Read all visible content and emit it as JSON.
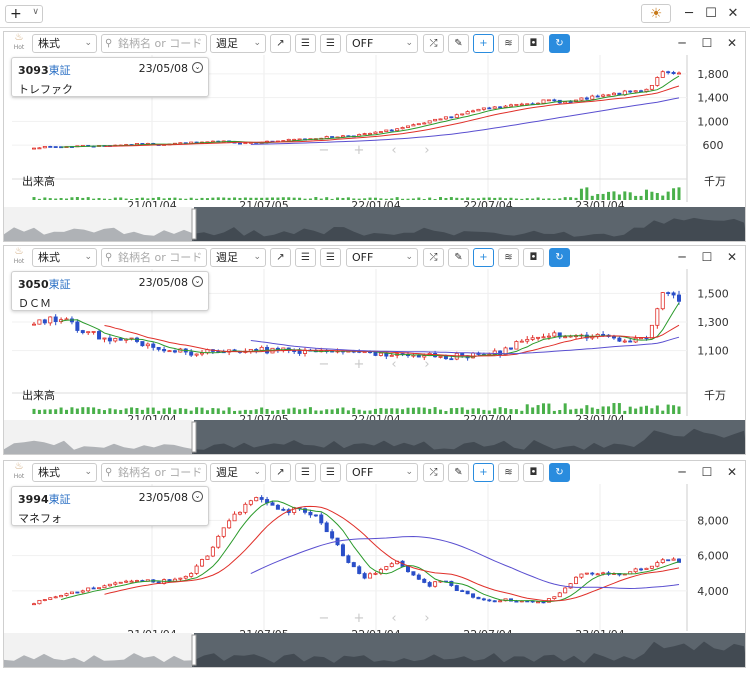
{
  "app": {
    "add_label": "+",
    "add_chev": "∨",
    "theme_icon": "☀",
    "minimize": "─",
    "maximize": "☐",
    "close": "✕"
  },
  "toolbar": {
    "hot_label": "Hot",
    "type": "株式",
    "search_placeholder": "銘柄名 or コード",
    "period": "週足",
    "overlay": "OFF",
    "pwin_min": "─",
    "pwin_max": "☐",
    "pwin_close": "✕"
  },
  "axis_dates": [
    "21/01/04",
    "21/07/05",
    "22/01/04",
    "22/07/04",
    "23/01/04"
  ],
  "panels": [
    {
      "code": "3093",
      "market": "東証",
      "date": "23/05/08",
      "name": "トレファク",
      "volume_label": "出来高",
      "volume_unit": "千万",
      "y_ticks": [
        "1,800",
        "1,400",
        "1,000",
        "600"
      ]
    },
    {
      "code": "3050",
      "market": "東証",
      "date": "23/05/08",
      "name": "ＤＣＭ",
      "volume_label": "出来高",
      "volume_unit": "千万",
      "y_ticks": [
        "1,500",
        "1,300",
        "1,100"
      ]
    },
    {
      "code": "3994",
      "market": "東証",
      "date": "23/05/08",
      "name": "マネフォ",
      "volume_label": "",
      "volume_unit": "",
      "y_ticks": [
        "8,000",
        "6,000",
        "4,000"
      ]
    }
  ],
  "chart_data": [
    {
      "type": "candlestick",
      "title": "3093 トレファク",
      "x_dates": [
        "21/01/04",
        "21/07/05",
        "22/01/04",
        "22/07/04",
        "23/01/04"
      ],
      "ylim": [
        500,
        1950
      ],
      "close_series": [
        560,
        570,
        575,
        590,
        585,
        600,
        610,
        620,
        615,
        630,
        640,
        650,
        660,
        640,
        650,
        660,
        680,
        700,
        720,
        740,
        760,
        780,
        820,
        870,
        920,
        980,
        1050,
        1120,
        1180,
        1220,
        1250,
        1300,
        1330,
        1350,
        1320,
        1380,
        1420,
        1460,
        1500,
        1550,
        1820,
        1780
      ],
      "moving_averages": [
        "13週",
        "26週",
        "52週"
      ]
    },
    {
      "type": "candlestick",
      "title": "3050 ＤＣＭ",
      "x_dates": [
        "21/01/04",
        "21/07/05",
        "22/01/04",
        "22/07/04",
        "23/01/04"
      ],
      "ylim": [
        1000,
        1600
      ],
      "close_series": [
        1300,
        1320,
        1310,
        1250,
        1200,
        1180,
        1170,
        1150,
        1120,
        1100,
        1080,
        1090,
        1100,
        1110,
        1100,
        1105,
        1110,
        1100,
        1090,
        1095,
        1100,
        1090,
        1085,
        1080,
        1075,
        1070,
        1065,
        1060,
        1070,
        1080,
        1100,
        1180,
        1200,
        1210,
        1200,
        1190,
        1200,
        1180,
        1175,
        1170,
        1490,
        1450
      ],
      "moving_averages": [
        "13週",
        "26週",
        "52週"
      ]
    },
    {
      "type": "candlestick",
      "title": "3994 マネフォ",
      "x_dates": [
        "21/01/04",
        "21/07/05",
        "22/01/04",
        "22/07/04",
        "23/01/04"
      ],
      "ylim": [
        2800,
        9500
      ],
      "close_series": [
        3300,
        3600,
        3800,
        4000,
        4200,
        4400,
        4500,
        4600,
        4500,
        4700,
        5000,
        6000,
        7500,
        8500,
        9200,
        8800,
        8500,
        8700,
        8200,
        7000,
        5500,
        4800,
        5200,
        5800,
        5000,
        4300,
        4600,
        4000,
        3600,
        3400,
        3500,
        3400,
        3300,
        3600,
        4400,
        5100,
        5000,
        4900,
        5100,
        5300,
        5900,
        5600
      ],
      "moving_averages": [
        "13週",
        "26週",
        "52週"
      ]
    }
  ]
}
